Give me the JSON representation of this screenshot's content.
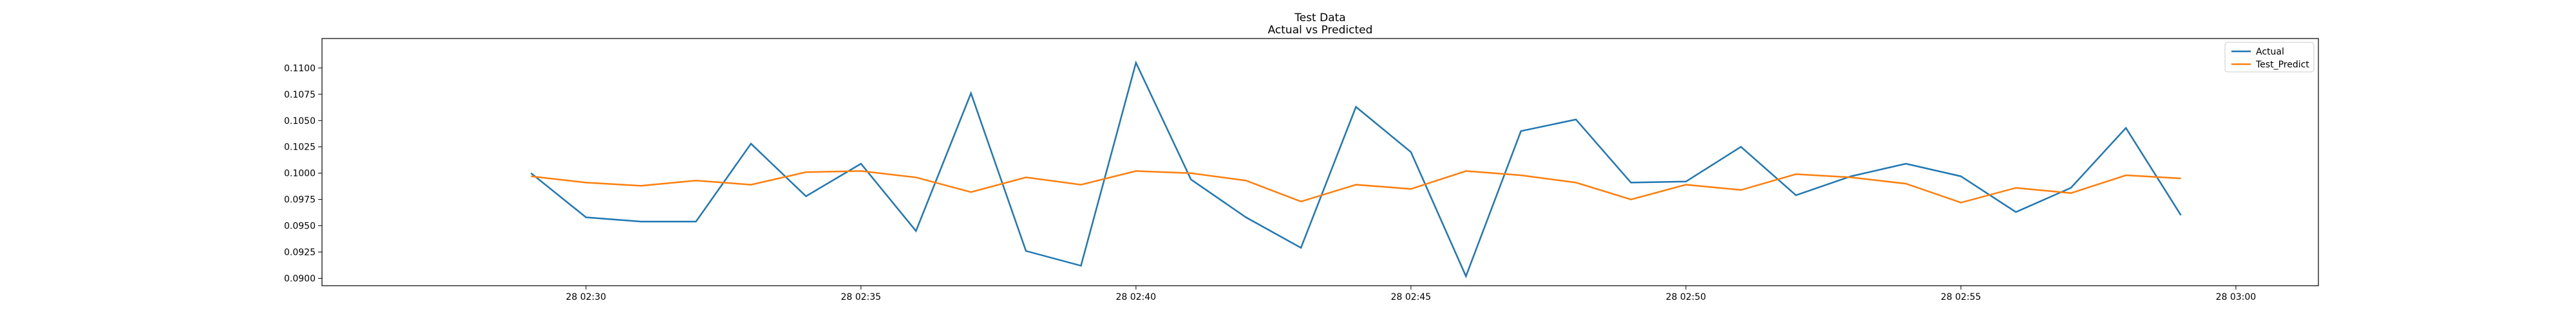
{
  "chart_data": {
    "type": "line",
    "title": "Test Data",
    "subtitle": "Actual vs Predicted",
    "xlabel": "",
    "ylabel": "",
    "x_tick_labels": [
      "28 02:30",
      "28 02:35",
      "28 02:40",
      "28 02:45",
      "28 02:50",
      "28 02:55",
      "28 03:00"
    ],
    "x_tick_values": [
      30,
      35,
      40,
      45,
      50,
      55,
      60
    ],
    "xlim": [
      25.2,
      61.5
    ],
    "y_ticks": [
      0.09,
      0.0925,
      0.095,
      0.0975,
      0.1,
      0.1025,
      0.105,
      0.1075,
      0.11
    ],
    "y_tick_labels": [
      "0.0900",
      "0.0925",
      "0.0950",
      "0.0975",
      "0.1000",
      "0.1025",
      "0.1050",
      "0.1075",
      "0.1100"
    ],
    "ylim": [
      0.0893,
      0.1128
    ],
    "grid": false,
    "legend_position": "top-right",
    "x": [
      29,
      30,
      31,
      32,
      33,
      34,
      35,
      36,
      37,
      38,
      39,
      40,
      41,
      42,
      43,
      44,
      45,
      46,
      47,
      48,
      49,
      50,
      51,
      52,
      53,
      54,
      55,
      56,
      57,
      58,
      59
    ],
    "series": [
      {
        "name": "Actual",
        "color": "#1f77b4",
        "values": [
          0.1,
          0.0958,
          0.0954,
          0.0954,
          0.1028,
          0.0978,
          0.1009,
          0.0945,
          0.1076,
          0.0926,
          0.0912,
          0.1105,
          0.0994,
          0.0958,
          0.0929,
          0.1063,
          0.102,
          0.0902,
          0.104,
          0.1051,
          0.0991,
          0.0992,
          0.1025,
          0.0979,
          0.0997,
          0.1009,
          0.0997,
          0.0963,
          0.0986,
          0.1043,
          0.096
        ]
      },
      {
        "name": "Test_Predict",
        "color": "#ff7f0e",
        "values": [
          0.0997,
          0.0991,
          0.0988,
          0.0993,
          0.0989,
          0.1001,
          0.1002,
          0.0996,
          0.0982,
          0.0996,
          0.0989,
          0.1002,
          0.1,
          0.0993,
          0.0973,
          0.0989,
          0.0985,
          0.1002,
          0.0998,
          0.0991,
          0.0975,
          0.0989,
          0.0984,
          0.0999,
          0.0996,
          0.099,
          0.0972,
          0.0986,
          0.0981,
          0.0998,
          0.0995
        ]
      }
    ]
  }
}
